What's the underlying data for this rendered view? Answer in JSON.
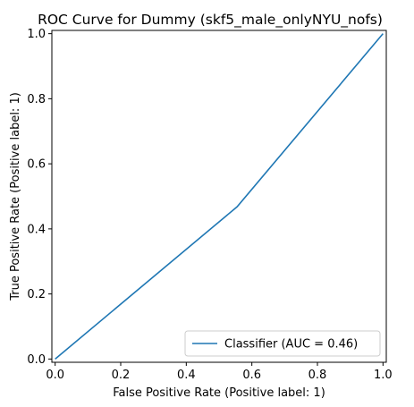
{
  "chart_data": {
    "type": "line",
    "title": "ROC Curve for Dummy (skf5_male_onlyNYU_nofs)",
    "xlabel": "False Positive Rate (Positive label: 1)",
    "ylabel": "True Positive Rate (Positive label: 1)",
    "xlim": [
      -0.01,
      1.01
    ],
    "ylim": [
      -0.01,
      1.01
    ],
    "xticks": [
      0.0,
      0.2,
      0.4,
      0.6,
      0.8,
      1.0
    ],
    "yticks": [
      0.0,
      0.2,
      0.4,
      0.6,
      0.8,
      1.0
    ],
    "xtick_labels": [
      "0.0",
      "0.2",
      "0.4",
      "0.6",
      "0.8",
      "1.0"
    ],
    "ytick_labels": [
      "0.0",
      "0.2",
      "0.4",
      "0.6",
      "0.8",
      "1.0"
    ],
    "grid": false,
    "legend_position": "lower-right",
    "series": [
      {
        "name": "Classifier (AUC = 0.46)",
        "color": "#1f77b4",
        "x": [
          0.0,
          0.555,
          1.0
        ],
        "y": [
          0.0,
          0.468,
          1.0
        ]
      }
    ]
  }
}
